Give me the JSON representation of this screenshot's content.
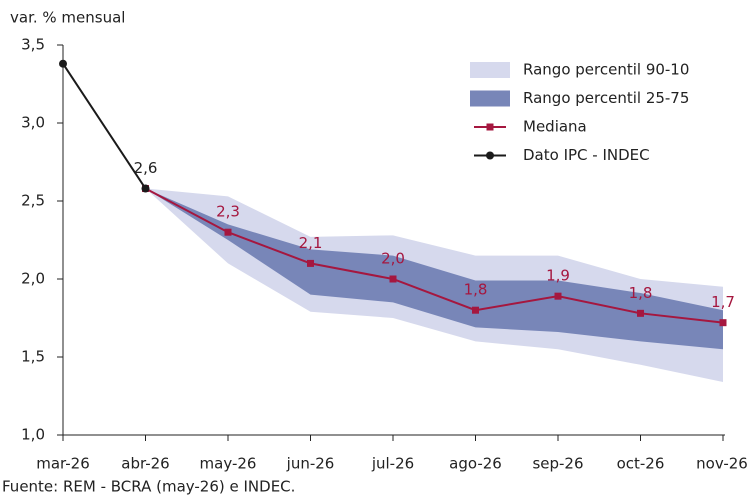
{
  "chart_data": {
    "type": "line",
    "y_label": "var. % mensual",
    "source": "Fuente: REM - BCRA (may-26) e INDEC.",
    "categories": [
      "mar-26",
      "abr-26",
      "may-26",
      "jun-26",
      "jul-26",
      "ago-26",
      "sep-26",
      "oct-26",
      "nov-26"
    ],
    "ylim": [
      1.0,
      3.5
    ],
    "yticks": [
      {
        "value": 1.0,
        "label": "1,0"
      },
      {
        "value": 1.5,
        "label": "1,5"
      },
      {
        "value": 2.0,
        "label": "2,0"
      },
      {
        "value": 2.5,
        "label": "2,5"
      },
      {
        "value": 3.0,
        "label": "3,0"
      },
      {
        "value": 3.5,
        "label": "3,5"
      }
    ],
    "legend": "top-right",
    "series": [
      {
        "name": "Rango percentil 90-10",
        "type": "band",
        "color": "#d6d9ed",
        "low": [
          null,
          2.58,
          2.1,
          1.79,
          1.75,
          1.6,
          1.55,
          1.45,
          1.34
        ],
        "high": [
          null,
          2.58,
          2.53,
          2.27,
          2.28,
          2.15,
          2.15,
          2.0,
          1.95
        ]
      },
      {
        "name": "Rango percentil 25-75",
        "type": "band",
        "color": "#7886b8",
        "low": [
          null,
          2.58,
          2.25,
          1.9,
          1.85,
          1.69,
          1.66,
          1.6,
          1.55
        ],
        "high": [
          null,
          2.58,
          2.35,
          2.19,
          2.15,
          1.99,
          1.99,
          1.91,
          1.8
        ]
      },
      {
        "name": "Mediana",
        "type": "line",
        "marker": "square",
        "color": "#a5173f",
        "values": [
          null,
          2.58,
          2.3,
          2.1,
          2.0,
          1.8,
          1.89,
          1.78,
          1.72
        ],
        "value_labels": [
          null,
          null,
          "2,3",
          "2,1",
          "2,0",
          "1,8",
          "1,9",
          "1,8",
          "1,7"
        ]
      },
      {
        "name": "Dato IPC - INDEC",
        "type": "line",
        "marker": "circle",
        "color": "#1a1a1a",
        "values": [
          3.38,
          2.58,
          null,
          null,
          null,
          null,
          null,
          null,
          null
        ],
        "value_labels": [
          null,
          "2,6",
          null,
          null,
          null,
          null,
          null,
          null,
          null
        ]
      }
    ]
  }
}
